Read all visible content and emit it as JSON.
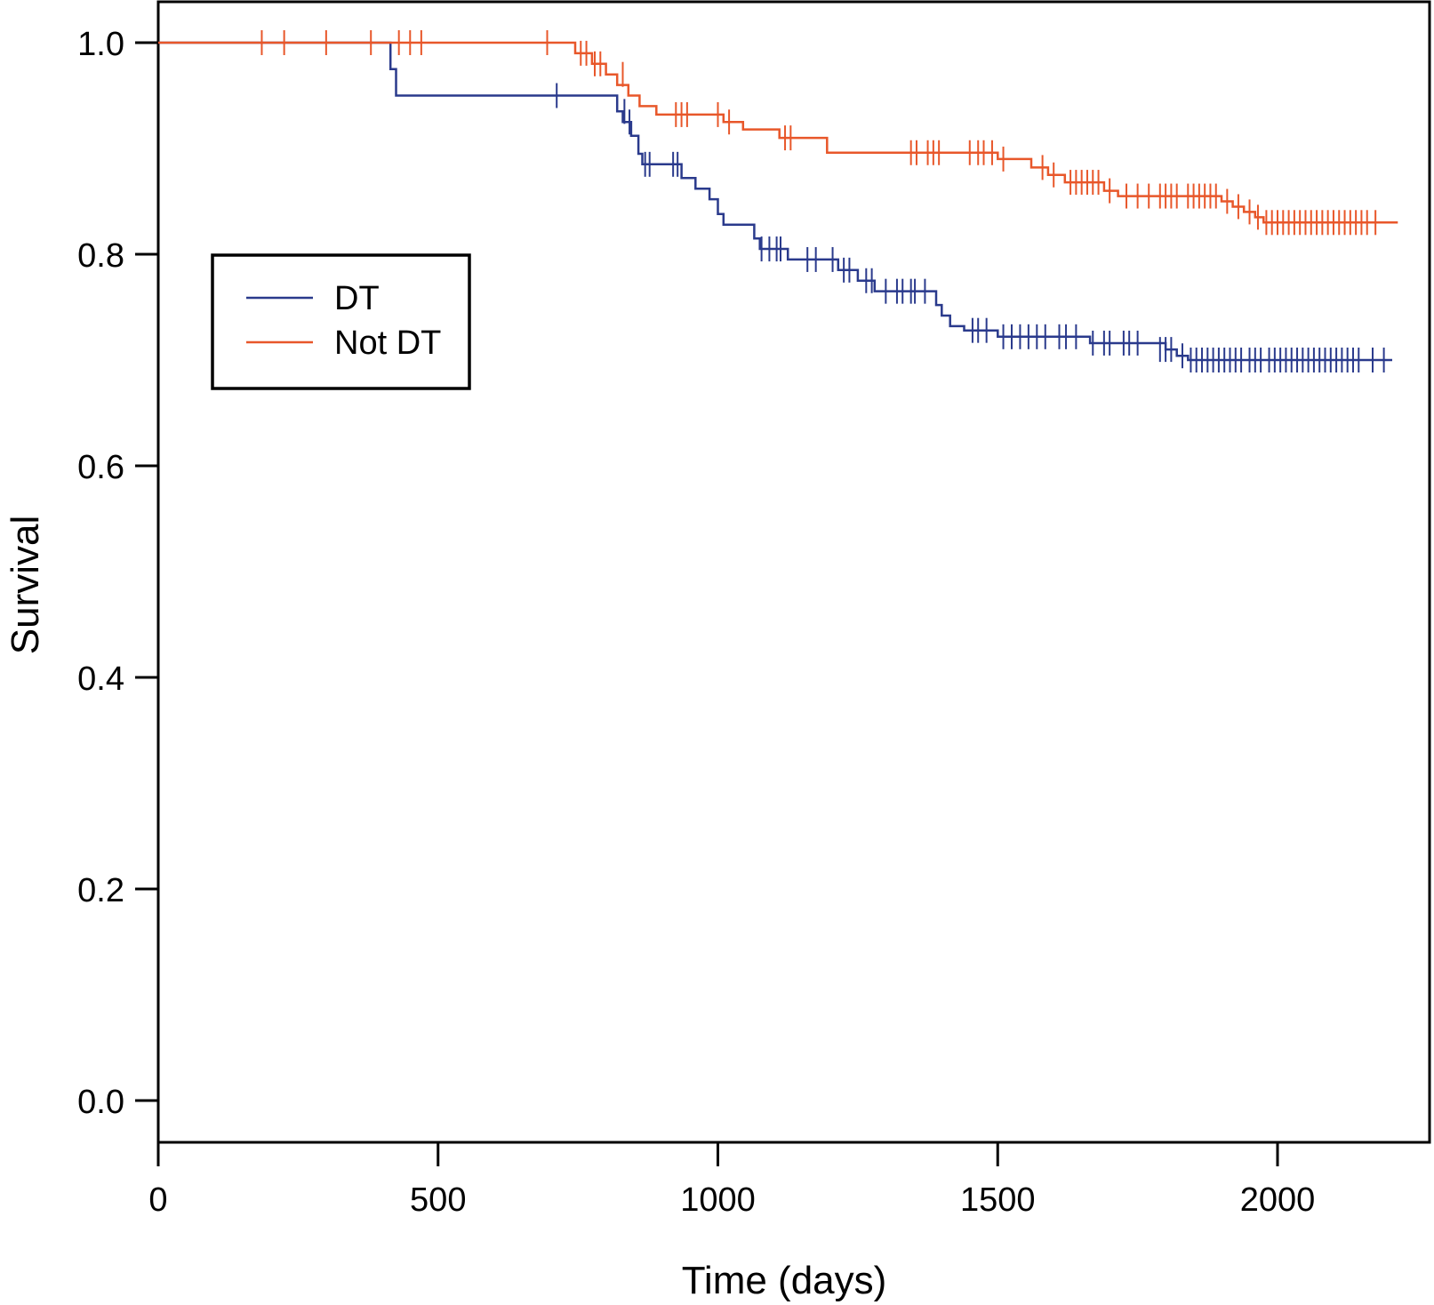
{
  "chart_data": {
    "type": "line",
    "subtype": "kaplan-meier step curves with censor ticks",
    "title": "",
    "xlabel": "Time (days)",
    "ylabel": "Survival",
    "xlim": [
      0,
      2250
    ],
    "ylim": [
      -0.04,
      1.04
    ],
    "x_ticks": [
      0,
      500,
      1000,
      1500,
      2000
    ],
    "x_tick_labels": [
      "0",
      "500",
      "1000",
      "1500",
      "2000"
    ],
    "y_ticks": [
      0.0,
      0.2,
      0.4,
      0.6,
      0.8,
      1.0
    ],
    "y_tick_labels": [
      "0.0",
      "0.2",
      "0.4",
      "0.6",
      "0.8",
      "1.0"
    ],
    "grid": false,
    "legend": {
      "placement": "upper-left",
      "entries": [
        "DT",
        "Not DT"
      ]
    },
    "series": [
      {
        "name": "DT",
        "color": "#2a3a8c",
        "steps": [
          [
            0,
            1.0
          ],
          [
            415,
            1.0
          ],
          [
            415,
            0.975
          ],
          [
            425,
            0.975
          ],
          [
            425,
            0.95
          ],
          [
            820,
            0.95
          ],
          [
            820,
            0.935
          ],
          [
            830,
            0.935
          ],
          [
            830,
            0.925
          ],
          [
            845,
            0.925
          ],
          [
            845,
            0.912
          ],
          [
            858,
            0.912
          ],
          [
            858,
            0.895
          ],
          [
            865,
            0.895
          ],
          [
            865,
            0.885
          ],
          [
            935,
            0.885
          ],
          [
            935,
            0.872
          ],
          [
            960,
            0.872
          ],
          [
            960,
            0.862
          ],
          [
            985,
            0.862
          ],
          [
            985,
            0.852
          ],
          [
            1000,
            0.852
          ],
          [
            1000,
            0.838
          ],
          [
            1010,
            0.838
          ],
          [
            1010,
            0.828
          ],
          [
            1065,
            0.828
          ],
          [
            1065,
            0.815
          ],
          [
            1075,
            0.815
          ],
          [
            1075,
            0.805
          ],
          [
            1125,
            0.805
          ],
          [
            1125,
            0.795
          ],
          [
            1215,
            0.795
          ],
          [
            1215,
            0.785
          ],
          [
            1250,
            0.785
          ],
          [
            1250,
            0.775
          ],
          [
            1280,
            0.775
          ],
          [
            1280,
            0.765
          ],
          [
            1390,
            0.765
          ],
          [
            1390,
            0.752
          ],
          [
            1400,
            0.752
          ],
          [
            1400,
            0.742
          ],
          [
            1415,
            0.742
          ],
          [
            1415,
            0.732
          ],
          [
            1440,
            0.732
          ],
          [
            1440,
            0.728
          ],
          [
            1500,
            0.728
          ],
          [
            1500,
            0.722
          ],
          [
            1665,
            0.722
          ],
          [
            1665,
            0.716
          ],
          [
            1800,
            0.716
          ],
          [
            1800,
            0.71
          ],
          [
            1820,
            0.71
          ],
          [
            1820,
            0.704
          ],
          [
            1840,
            0.704
          ],
          [
            1840,
            0.7
          ],
          [
            2205,
            0.7
          ]
        ],
        "censors": [
          [
            712,
            0.95
          ],
          [
            833,
            0.935
          ],
          [
            842,
            0.925
          ],
          [
            870,
            0.885
          ],
          [
            878,
            0.885
          ],
          [
            920,
            0.885
          ],
          [
            928,
            0.885
          ],
          [
            1078,
            0.805
          ],
          [
            1092,
            0.805
          ],
          [
            1105,
            0.805
          ],
          [
            1112,
            0.805
          ],
          [
            1160,
            0.795
          ],
          [
            1175,
            0.795
          ],
          [
            1205,
            0.795
          ],
          [
            1225,
            0.785
          ],
          [
            1235,
            0.785
          ],
          [
            1265,
            0.775
          ],
          [
            1275,
            0.775
          ],
          [
            1300,
            0.765
          ],
          [
            1320,
            0.765
          ],
          [
            1330,
            0.765
          ],
          [
            1345,
            0.765
          ],
          [
            1352,
            0.765
          ],
          [
            1370,
            0.765
          ],
          [
            1455,
            0.728
          ],
          [
            1465,
            0.728
          ],
          [
            1480,
            0.728
          ],
          [
            1510,
            0.722
          ],
          [
            1525,
            0.722
          ],
          [
            1540,
            0.722
          ],
          [
            1555,
            0.722
          ],
          [
            1570,
            0.722
          ],
          [
            1585,
            0.722
          ],
          [
            1610,
            0.722
          ],
          [
            1622,
            0.722
          ],
          [
            1640,
            0.722
          ],
          [
            1670,
            0.716
          ],
          [
            1690,
            0.716
          ],
          [
            1700,
            0.716
          ],
          [
            1725,
            0.716
          ],
          [
            1735,
            0.716
          ],
          [
            1750,
            0.716
          ],
          [
            1790,
            0.71
          ],
          [
            1800,
            0.71
          ],
          [
            1810,
            0.71
          ],
          [
            1830,
            0.704
          ],
          [
            1845,
            0.7
          ],
          [
            1855,
            0.7
          ],
          [
            1865,
            0.7
          ],
          [
            1875,
            0.7
          ],
          [
            1885,
            0.7
          ],
          [
            1895,
            0.7
          ],
          [
            1905,
            0.7
          ],
          [
            1915,
            0.7
          ],
          [
            1925,
            0.7
          ],
          [
            1935,
            0.7
          ],
          [
            1950,
            0.7
          ],
          [
            1960,
            0.7
          ],
          [
            1970,
            0.7
          ],
          [
            1985,
            0.7
          ],
          [
            1995,
            0.7
          ],
          [
            2005,
            0.7
          ],
          [
            2015,
            0.7
          ],
          [
            2025,
            0.7
          ],
          [
            2035,
            0.7
          ],
          [
            2045,
            0.7
          ],
          [
            2055,
            0.7
          ],
          [
            2065,
            0.7
          ],
          [
            2075,
            0.7
          ],
          [
            2085,
            0.7
          ],
          [
            2095,
            0.7
          ],
          [
            2105,
            0.7
          ],
          [
            2115,
            0.7
          ],
          [
            2125,
            0.7
          ],
          [
            2135,
            0.7
          ],
          [
            2145,
            0.7
          ],
          [
            2170,
            0.7
          ],
          [
            2190,
            0.7
          ]
        ]
      },
      {
        "name": "Not DT",
        "color": "#e8572a",
        "steps": [
          [
            0,
            1.0
          ],
          [
            745,
            1.0
          ],
          [
            745,
            0.99
          ],
          [
            775,
            0.99
          ],
          [
            775,
            0.98
          ],
          [
            800,
            0.98
          ],
          [
            800,
            0.97
          ],
          [
            820,
            0.97
          ],
          [
            820,
            0.96
          ],
          [
            840,
            0.96
          ],
          [
            840,
            0.95
          ],
          [
            860,
            0.95
          ],
          [
            860,
            0.94
          ],
          [
            890,
            0.94
          ],
          [
            890,
            0.932
          ],
          [
            1010,
            0.932
          ],
          [
            1010,
            0.925
          ],
          [
            1045,
            0.925
          ],
          [
            1045,
            0.918
          ],
          [
            1110,
            0.918
          ],
          [
            1110,
            0.91
          ],
          [
            1195,
            0.91
          ],
          [
            1195,
            0.896
          ],
          [
            1500,
            0.896
          ],
          [
            1500,
            0.89
          ],
          [
            1560,
            0.89
          ],
          [
            1560,
            0.882
          ],
          [
            1590,
            0.882
          ],
          [
            1590,
            0.875
          ],
          [
            1620,
            0.875
          ],
          [
            1620,
            0.868
          ],
          [
            1690,
            0.868
          ],
          [
            1690,
            0.86
          ],
          [
            1715,
            0.86
          ],
          [
            1715,
            0.855
          ],
          [
            1900,
            0.855
          ],
          [
            1900,
            0.85
          ],
          [
            1920,
            0.85
          ],
          [
            1920,
            0.845
          ],
          [
            1940,
            0.845
          ],
          [
            1940,
            0.84
          ],
          [
            1960,
            0.84
          ],
          [
            1960,
            0.835
          ],
          [
            1975,
            0.835
          ],
          [
            1975,
            0.83
          ],
          [
            2215,
            0.83
          ]
        ],
        "censors": [
          [
            185,
            1.0
          ],
          [
            225,
            1.0
          ],
          [
            300,
            1.0
          ],
          [
            380,
            1.0
          ],
          [
            430,
            1.0
          ],
          [
            450,
            1.0
          ],
          [
            470,
            1.0
          ],
          [
            695,
            1.0
          ],
          [
            755,
            0.99
          ],
          [
            765,
            0.99
          ],
          [
            780,
            0.98
          ],
          [
            790,
            0.98
          ],
          [
            830,
            0.97
          ],
          [
            925,
            0.932
          ],
          [
            935,
            0.932
          ],
          [
            945,
            0.932
          ],
          [
            1000,
            0.932
          ],
          [
            1020,
            0.925
          ],
          [
            1120,
            0.91
          ],
          [
            1130,
            0.91
          ],
          [
            1345,
            0.896
          ],
          [
            1355,
            0.896
          ],
          [
            1375,
            0.896
          ],
          [
            1385,
            0.896
          ],
          [
            1395,
            0.896
          ],
          [
            1450,
            0.896
          ],
          [
            1465,
            0.896
          ],
          [
            1475,
            0.896
          ],
          [
            1490,
            0.896
          ],
          [
            1510,
            0.89
          ],
          [
            1580,
            0.882
          ],
          [
            1600,
            0.875
          ],
          [
            1630,
            0.868
          ],
          [
            1640,
            0.868
          ],
          [
            1650,
            0.868
          ],
          [
            1660,
            0.868
          ],
          [
            1670,
            0.868
          ],
          [
            1680,
            0.868
          ],
          [
            1700,
            0.86
          ],
          [
            1730,
            0.855
          ],
          [
            1750,
            0.855
          ],
          [
            1770,
            0.855
          ],
          [
            1790,
            0.855
          ],
          [
            1800,
            0.855
          ],
          [
            1810,
            0.855
          ],
          [
            1820,
            0.855
          ],
          [
            1840,
            0.855
          ],
          [
            1850,
            0.855
          ],
          [
            1860,
            0.855
          ],
          [
            1870,
            0.855
          ],
          [
            1880,
            0.855
          ],
          [
            1890,
            0.855
          ],
          [
            1910,
            0.85
          ],
          [
            1930,
            0.845
          ],
          [
            1950,
            0.84
          ],
          [
            1965,
            0.835
          ],
          [
            1980,
            0.83
          ],
          [
            1990,
            0.83
          ],
          [
            2000,
            0.83
          ],
          [
            2010,
            0.83
          ],
          [
            2020,
            0.83
          ],
          [
            2030,
            0.83
          ],
          [
            2040,
            0.83
          ],
          [
            2050,
            0.83
          ],
          [
            2060,
            0.83
          ],
          [
            2070,
            0.83
          ],
          [
            2080,
            0.83
          ],
          [
            2090,
            0.83
          ],
          [
            2100,
            0.83
          ],
          [
            2110,
            0.83
          ],
          [
            2120,
            0.83
          ],
          [
            2130,
            0.83
          ],
          [
            2140,
            0.83
          ],
          [
            2150,
            0.83
          ],
          [
            2160,
            0.83
          ],
          [
            2175,
            0.83
          ]
        ]
      }
    ]
  }
}
